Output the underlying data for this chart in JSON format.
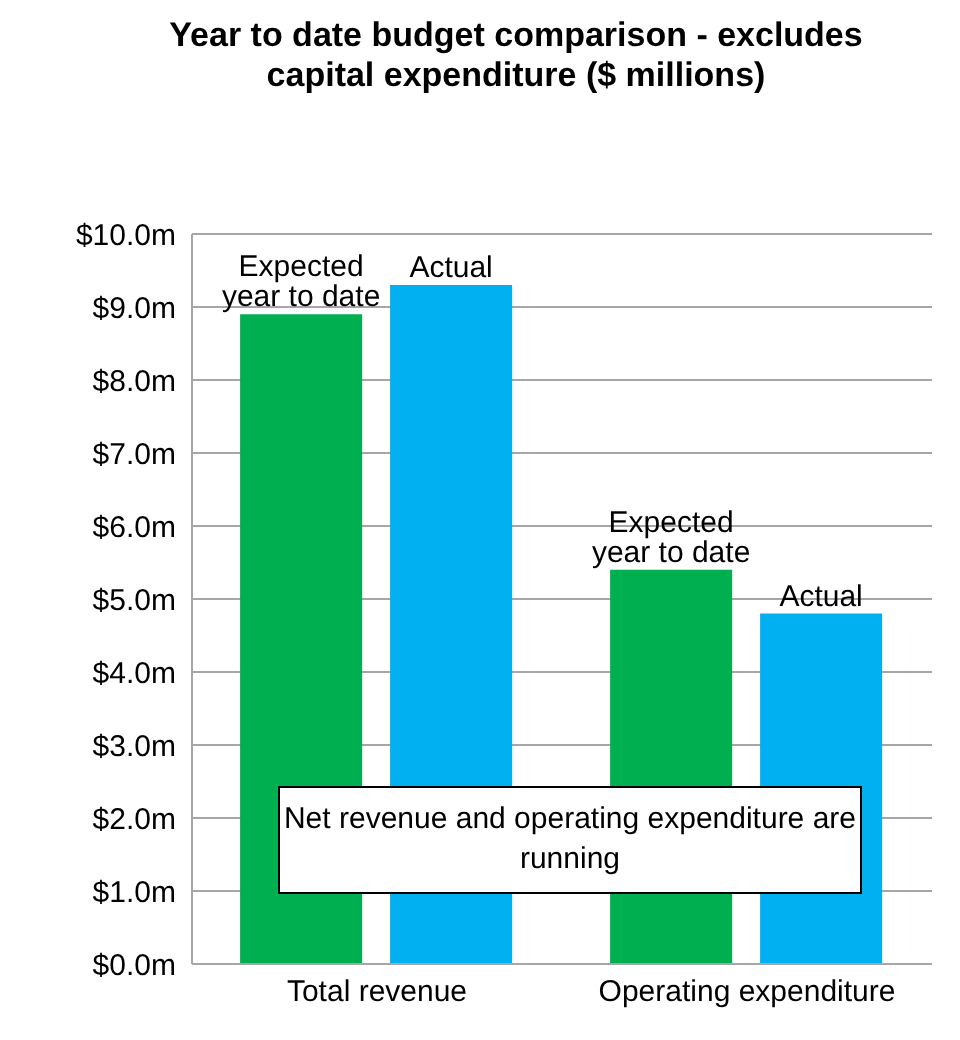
{
  "chart_data": {
    "type": "bar",
    "title": "Year to date budget comparison - excludes capital expenditure ($ millions)",
    "categories": [
      "Total revenue",
      "Operating expenditure"
    ],
    "series": [
      {
        "name": "Expected year to date",
        "color": "#00b050",
        "values": [
          8.9,
          5.4
        ]
      },
      {
        "name": "Actual",
        "color": "#00b0f0",
        "values": [
          9.3,
          4.8
        ]
      }
    ],
    "ylim": [
      0,
      10
    ],
    "yticks": [
      {
        "value": 0,
        "label": "$0.0m"
      },
      {
        "value": 1,
        "label": "$1.0m"
      },
      {
        "value": 2,
        "label": "$2.0m"
      },
      {
        "value": 3,
        "label": "$3.0m"
      },
      {
        "value": 4,
        "label": "$4.0m"
      },
      {
        "value": 5,
        "label": "$5.0m"
      },
      {
        "value": 6,
        "label": "$6.0m"
      },
      {
        "value": 7,
        "label": "$7.0m"
      },
      {
        "value": 8,
        "label": "$8.0m"
      },
      {
        "value": 9,
        "label": "$9.0m"
      },
      {
        "value": 10,
        "label": "$10.0m"
      }
    ],
    "grid": "y",
    "legend": false,
    "annotations": [
      "Net revenue and operating expenditure are running"
    ]
  }
}
